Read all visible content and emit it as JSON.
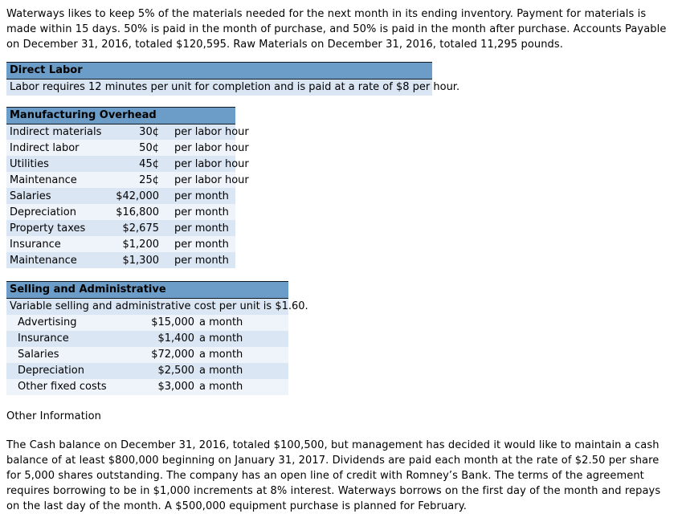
{
  "page": {
    "intro_paragraph": "Waterways likes to keep 5% of the materials needed for the next month in its ending inventory. Payment for materials is made within 15 days. 50% is paid in the month of purchase, and 50% is paid in the month after purchase. Accounts Payable on December 31, 2016, totaled $120,595. Raw Materials on December 31, 2016, totaled 11,295 pounds.",
    "other_info_heading": "Other Information",
    "other_info_paragraph": "The Cash balance on December 31, 2016, totaled $100,500, but management has decided it would like to maintain a cash balance of at least $800,000 beginning on January 31, 2017. Dividends are paid each month at the rate of $2.50 per share for 5,000 shares outstanding. The company has an open line of credit with Romney’s Bank. The terms of the agreement requires borrowing to be in $1,000 increments at 8% interest. Waterways borrows on the first day of the month and repays on the last day of the month. A $500,000 equipment purchase is planned for February."
  },
  "direct_labor": {
    "title": "Direct Labor",
    "note": "Labor requires 12 minutes per unit for completion and is paid at a rate of $8 per hour."
  },
  "manufacturing_overhead": {
    "title": "Manufacturing Overhead",
    "rows": [
      {
        "item": "Indirect materials",
        "value": "30¢",
        "unit": "per labor hour"
      },
      {
        "item": "Indirect labor",
        "value": "50¢",
        "unit": "per labor hour"
      },
      {
        "item": "Utilities",
        "value": "45¢",
        "unit": "per labor hour"
      },
      {
        "item": "Maintenance",
        "value": "25¢",
        "unit": "per labor hour"
      },
      {
        "item": "Salaries",
        "value": "$42,000",
        "unit": "per month"
      },
      {
        "item": "Depreciation",
        "value": "$16,800",
        "unit": "per month"
      },
      {
        "item": "Property taxes",
        "value": "$2,675",
        "unit": "per month"
      },
      {
        "item": "Insurance",
        "value": "$1,200",
        "unit": "per month"
      },
      {
        "item": "Maintenance",
        "value": "$1,300",
        "unit": "per month"
      }
    ]
  },
  "selling_administrative": {
    "title": "Selling and Administrative",
    "note": "Variable selling and administrative cost per unit is $1.60.",
    "rows": [
      {
        "item": "Advertising",
        "value": "$15,000",
        "unit": "a month"
      },
      {
        "item": "Insurance",
        "value": "$1,400",
        "unit": "a month"
      },
      {
        "item": "Salaries",
        "value": "$72,000",
        "unit": "a month"
      },
      {
        "item": "Depreciation",
        "value": "$2,500",
        "unit": "a month"
      },
      {
        "item": "Other fixed costs",
        "value": "$3,000",
        "unit": "a month"
      }
    ]
  },
  "colors": {
    "header_blue": "#6C9DC8",
    "row_blue": "#DAE6F4",
    "row_light": "#EFF4FB",
    "border_dark": "#101820",
    "text": "#000000"
  }
}
